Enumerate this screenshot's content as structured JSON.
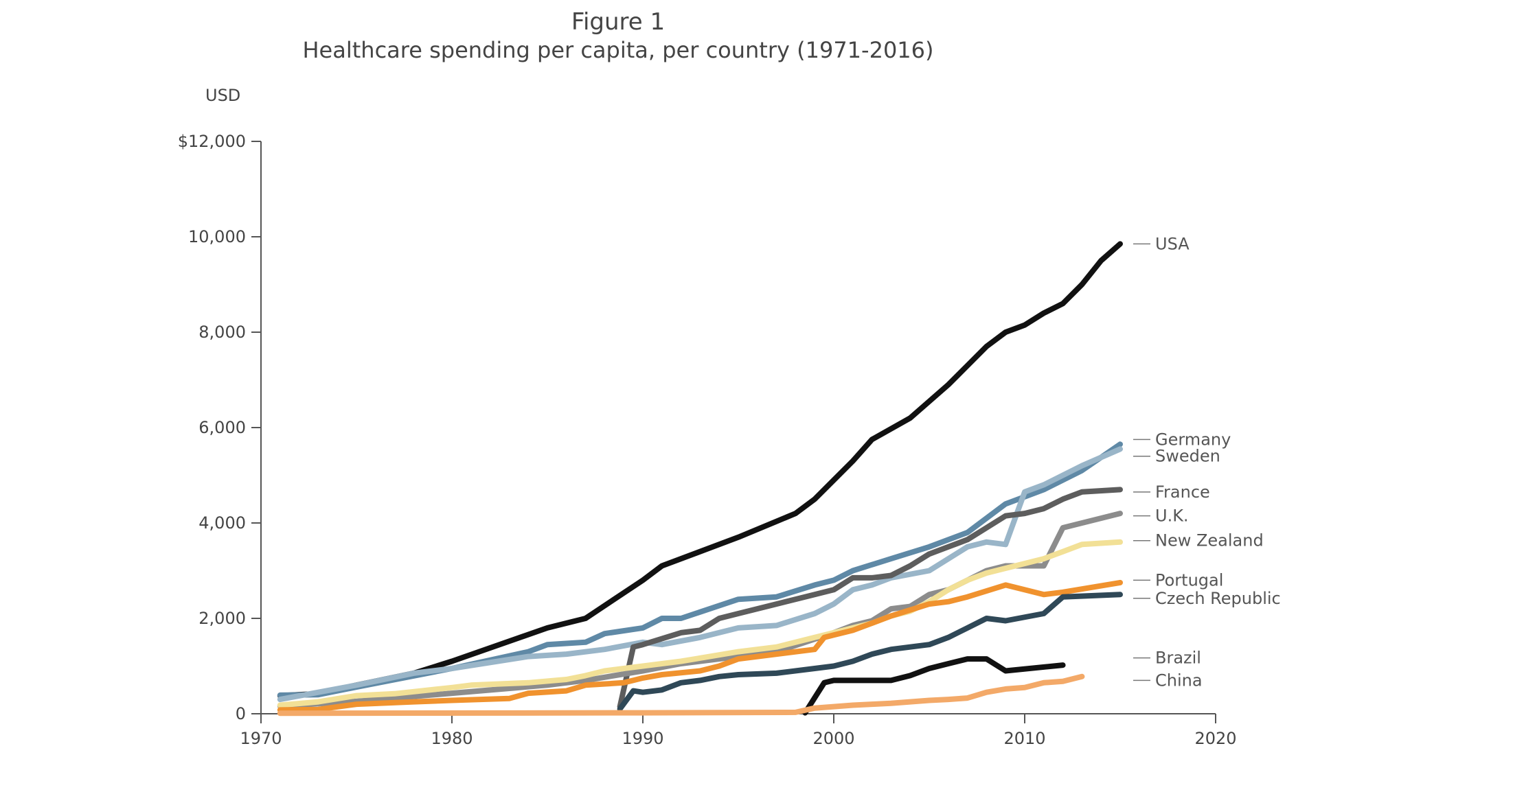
{
  "figure_label": "Figure 1",
  "chart_data": {
    "type": "line",
    "title": "Healthcare spending per capita, per country (1971-2016)",
    "ylabel": "USD",
    "xlabel": "",
    "xlim": [
      1970,
      2020
    ],
    "ylim": [
      0,
      12000
    ],
    "x_ticks": [
      1970,
      1980,
      1990,
      2000,
      2010,
      2020
    ],
    "y_ticks": [
      {
        "value": 0,
        "label": "0"
      },
      {
        "value": 2000,
        "label": "2,000"
      },
      {
        "value": 4000,
        "label": "4,000"
      },
      {
        "value": 6000,
        "label": "6,000"
      },
      {
        "value": 8000,
        "label": "8,000"
      },
      {
        "value": 10000,
        "label": "10,000"
      },
      {
        "value": 12000,
        "label": "$12,000"
      }
    ],
    "grid": false,
    "legend": "end-of-line labels",
    "series": [
      {
        "name": "USA",
        "color": "#111111",
        "points": [
          [
            1971,
            380
          ],
          [
            1973,
            420
          ],
          [
            1975,
            600
          ],
          [
            1978,
            850
          ],
          [
            1980,
            1100
          ],
          [
            1985,
            1800
          ],
          [
            1987,
            2000
          ],
          [
            1990,
            2800
          ],
          [
            1991,
            3100
          ],
          [
            1995,
            3700
          ],
          [
            1998,
            4200
          ],
          [
            1999,
            4500
          ],
          [
            2000,
            4900
          ],
          [
            2001,
            5300
          ],
          [
            2002,
            5750
          ],
          [
            2004,
            6200
          ],
          [
            2006,
            6900
          ],
          [
            2007,
            7300
          ],
          [
            2008,
            7700
          ],
          [
            2009,
            8000
          ],
          [
            2010,
            8150
          ],
          [
            2011,
            8400
          ],
          [
            2012,
            8600
          ],
          [
            2013,
            9000
          ],
          [
            2014,
            9500
          ],
          [
            2015,
            9850
          ]
        ]
      },
      {
        "name": "Germany",
        "color": "#5f89a6",
        "points": [
          [
            1971,
            390
          ],
          [
            1973,
            400
          ],
          [
            1975,
            560
          ],
          [
            1980,
            950
          ],
          [
            1984,
            1300
          ],
          [
            1985,
            1450
          ],
          [
            1987,
            1500
          ],
          [
            1988,
            1680
          ],
          [
            1990,
            1800
          ],
          [
            1991,
            2000
          ],
          [
            1992,
            2000
          ],
          [
            1995,
            2400
          ],
          [
            1997,
            2450
          ],
          [
            1999,
            2700
          ],
          [
            2000,
            2800
          ],
          [
            2001,
            3000
          ],
          [
            2003,
            3250
          ],
          [
            2005,
            3500
          ],
          [
            2007,
            3800
          ],
          [
            2009,
            4400
          ],
          [
            2011,
            4700
          ],
          [
            2013,
            5100
          ],
          [
            2015,
            5650
          ]
        ]
      },
      {
        "name": "Sweden",
        "color": "#99b5c8",
        "points": [
          [
            1971,
            300
          ],
          [
            1975,
            600
          ],
          [
            1978,
            850
          ],
          [
            1980,
            950
          ],
          [
            1984,
            1200
          ],
          [
            1986,
            1250
          ],
          [
            1988,
            1350
          ],
          [
            1990,
            1500
          ],
          [
            1991,
            1450
          ],
          [
            1993,
            1600
          ],
          [
            1995,
            1800
          ],
          [
            1997,
            1850
          ],
          [
            1999,
            2100
          ],
          [
            2000,
            2300
          ],
          [
            2001,
            2600
          ],
          [
            2002,
            2700
          ],
          [
            2003,
            2850
          ],
          [
            2005,
            3000
          ],
          [
            2007,
            3500
          ],
          [
            2008,
            3600
          ],
          [
            2009,
            3550
          ],
          [
            2010,
            4650
          ],
          [
            2011,
            4800
          ],
          [
            2013,
            5200
          ],
          [
            2015,
            5550
          ]
        ]
      },
      {
        "name": "France",
        "color": "#5d5d5d",
        "points": [
          [
            1988.8,
            150
          ],
          [
            1989.5,
            1400
          ],
          [
            1990,
            1450
          ],
          [
            1992,
            1700
          ],
          [
            1993,
            1750
          ],
          [
            1994,
            2000
          ],
          [
            1995,
            2100
          ],
          [
            1997,
            2300
          ],
          [
            1999,
            2500
          ],
          [
            2000,
            2600
          ],
          [
            2001,
            2850
          ],
          [
            2002,
            2850
          ],
          [
            2003,
            2900
          ],
          [
            2004,
            3100
          ],
          [
            2005,
            3350
          ],
          [
            2006,
            3500
          ],
          [
            2007,
            3650
          ],
          [
            2008,
            3900
          ],
          [
            2009,
            4150
          ],
          [
            2010,
            4200
          ],
          [
            2011,
            4300
          ],
          [
            2012,
            4500
          ],
          [
            2013,
            4650
          ],
          [
            2015,
            4700
          ]
        ]
      },
      {
        "name": "U.K.",
        "color": "#8c8c8c",
        "points": [
          [
            1971,
            160
          ],
          [
            1975,
            260
          ],
          [
            1980,
            430
          ],
          [
            1985,
            600
          ],
          [
            1987,
            700
          ],
          [
            1990,
            900
          ],
          [
            1992,
            1050
          ],
          [
            1995,
            1200
          ],
          [
            1997,
            1300
          ],
          [
            2000,
            1700
          ],
          [
            2001,
            1850
          ],
          [
            2002,
            1950
          ],
          [
            2003,
            2200
          ],
          [
            2004,
            2250
          ],
          [
            2005,
            2500
          ],
          [
            2006,
            2600
          ],
          [
            2007,
            2800
          ],
          [
            2008,
            3000
          ],
          [
            2009,
            3100
          ],
          [
            2011,
            3100
          ],
          [
            2011.5,
            3500
          ],
          [
            2012,
            3900
          ],
          [
            2015,
            4200
          ]
        ]
      },
      {
        "name": "New Zealand",
        "color": "#f2e096",
        "points": [
          [
            1971,
            180
          ],
          [
            1973,
            250
          ],
          [
            1975,
            380
          ],
          [
            1977,
            420
          ],
          [
            1980,
            550
          ],
          [
            1981,
            600
          ],
          [
            1984,
            650
          ],
          [
            1986,
            720
          ],
          [
            1987,
            800
          ],
          [
            1988,
            900
          ],
          [
            1990,
            1000
          ],
          [
            1992,
            1100
          ],
          [
            1995,
            1300
          ],
          [
            1997,
            1400
          ],
          [
            1999,
            1600
          ],
          [
            2000,
            1700
          ],
          [
            2001,
            1800
          ],
          [
            2002,
            1900
          ],
          [
            2003,
            2050
          ],
          [
            2004,
            2150
          ],
          [
            2005,
            2350
          ],
          [
            2006,
            2600
          ],
          [
            2007,
            2800
          ],
          [
            2008,
            2950
          ],
          [
            2009,
            3050
          ],
          [
            2011,
            3250
          ],
          [
            2012,
            3400
          ],
          [
            2013,
            3550
          ],
          [
            2015,
            3600
          ]
        ]
      },
      {
        "name": "Portugal",
        "color": "#f0922e",
        "points": [
          [
            1971,
            80
          ],
          [
            1973,
            90
          ],
          [
            1975,
            200
          ],
          [
            1978,
            250
          ],
          [
            1980,
            280
          ],
          [
            1983,
            320
          ],
          [
            1984,
            430
          ],
          [
            1986,
            480
          ],
          [
            1987,
            600
          ],
          [
            1989,
            650
          ],
          [
            1990,
            750
          ],
          [
            1991,
            820
          ],
          [
            1993,
            900
          ],
          [
            1994,
            1000
          ],
          [
            1995,
            1150
          ],
          [
            1997,
            1250
          ],
          [
            1999,
            1350
          ],
          [
            1999.5,
            1600
          ],
          [
            2000,
            1650
          ],
          [
            2001,
            1750
          ],
          [
            2002,
            1900
          ],
          [
            2003,
            2050
          ],
          [
            2005,
            2300
          ],
          [
            2006,
            2350
          ],
          [
            2007,
            2450
          ],
          [
            2009,
            2700
          ],
          [
            2011,
            2500
          ],
          [
            2012,
            2550
          ],
          [
            2015,
            2750
          ]
        ]
      },
      {
        "name": "Czech Republic",
        "color": "#2f4857",
        "points": [
          [
            1988.8,
            100
          ],
          [
            1989.5,
            480
          ],
          [
            1990,
            450
          ],
          [
            1991,
            500
          ],
          [
            1992,
            650
          ],
          [
            1993,
            700
          ],
          [
            1994,
            780
          ],
          [
            1995,
            820
          ],
          [
            1997,
            850
          ],
          [
            1999,
            950
          ],
          [
            2000,
            1000
          ],
          [
            2001,
            1100
          ],
          [
            2002,
            1250
          ],
          [
            2003,
            1350
          ],
          [
            2004,
            1400
          ],
          [
            2005,
            1450
          ],
          [
            2006,
            1600
          ],
          [
            2007,
            1800
          ],
          [
            2008,
            2000
          ],
          [
            2009,
            1950
          ],
          [
            2011,
            2100
          ],
          [
            2012,
            2450
          ],
          [
            2015,
            2500
          ]
        ]
      },
      {
        "name": "Brazil",
        "color": "#111111",
        "points": [
          [
            1998.5,
            20
          ],
          [
            1999.5,
            650
          ],
          [
            2000,
            700
          ],
          [
            2002,
            700
          ],
          [
            2003,
            700
          ],
          [
            2004,
            800
          ],
          [
            2005,
            950
          ],
          [
            2006,
            1050
          ],
          [
            2007,
            1150
          ],
          [
            2008,
            1150
          ],
          [
            2009,
            900
          ],
          [
            2012,
            1020
          ]
        ]
      },
      {
        "name": "China",
        "color": "#f3a968",
        "points": [
          [
            1971,
            10
          ],
          [
            1990,
            20
          ],
          [
            1998,
            30
          ],
          [
            1999,
            120
          ],
          [
            2000,
            150
          ],
          [
            2001,
            180
          ],
          [
            2002,
            200
          ],
          [
            2003,
            220
          ],
          [
            2004,
            250
          ],
          [
            2005,
            280
          ],
          [
            2006,
            300
          ],
          [
            2007,
            330
          ],
          [
            2008,
            450
          ],
          [
            2009,
            520
          ],
          [
            2010,
            550
          ],
          [
            2011,
            650
          ],
          [
            2012,
            680
          ],
          [
            2013,
            780
          ]
        ]
      }
    ],
    "end_labels": [
      {
        "name": "USA",
        "value": 9850
      },
      {
        "name": "Germany",
        "value": 5750
      },
      {
        "name": "Sweden",
        "value": 5400
      },
      {
        "name": "France",
        "value": 4650
      },
      {
        "name": "U.K.",
        "value": 4150
      },
      {
        "name": "New Zealand",
        "value": 3630
      },
      {
        "name": "Portugal",
        "value": 2800
      },
      {
        "name": "Czech Republic",
        "value": 2420
      },
      {
        "name": "Brazil",
        "value": 1170
      },
      {
        "name": "China",
        "value": 700
      }
    ]
  }
}
